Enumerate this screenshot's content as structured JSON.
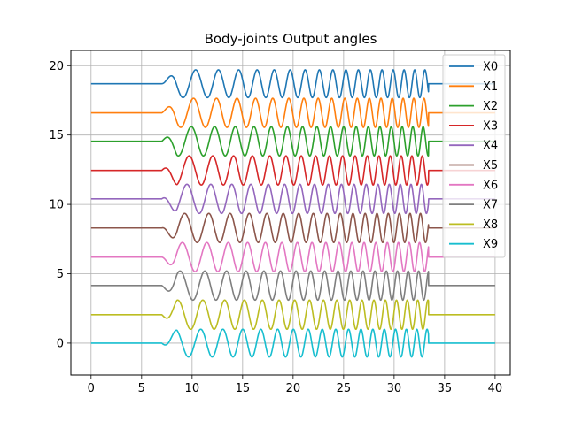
{
  "chart_data": {
    "type": "line",
    "title": "Body-joints Output angles",
    "xlabel": "",
    "ylabel": "",
    "xlim": [
      -2,
      41.5
    ],
    "ylim": [
      -2.3,
      21.1
    ],
    "xticks": [
      0,
      5,
      10,
      15,
      20,
      25,
      30,
      35,
      40
    ],
    "yticks": [
      0,
      5,
      10,
      15,
      20
    ],
    "grid": true,
    "legend_position": "top-right",
    "series": [
      {
        "name": "X0",
        "color": "#1f77b4",
        "offset": 18.7,
        "amplitude": 1.0,
        "phase": 0.0
      },
      {
        "name": "X1",
        "color": "#ff7f0e",
        "offset": 16.6,
        "amplitude": 1.05,
        "phase": 0.55
      },
      {
        "name": "X2",
        "color": "#2ca02c",
        "offset": 14.55,
        "amplitude": 1.05,
        "phase": 1.1
      },
      {
        "name": "X3",
        "color": "#d62728",
        "offset": 12.45,
        "amplitude": 1.05,
        "phase": 1.65
      },
      {
        "name": "X4",
        "color": "#9467bd",
        "offset": 10.4,
        "amplitude": 1.05,
        "phase": 2.2
      },
      {
        "name": "X5",
        "color": "#8c564b",
        "offset": 8.3,
        "amplitude": 1.05,
        "phase": 2.75
      },
      {
        "name": "X6",
        "color": "#e377c2",
        "offset": 6.2,
        "amplitude": 1.05,
        "phase": 3.3
      },
      {
        "name": "X7",
        "color": "#7f7f7f",
        "offset": 4.15,
        "amplitude": 1.05,
        "phase": 3.85
      },
      {
        "name": "X8",
        "color": "#bcbd22",
        "offset": 2.05,
        "amplitude": 1.05,
        "phase": 4.4
      },
      {
        "name": "X9",
        "color": "#17becf",
        "offset": 0.0,
        "amplitude": 1.0,
        "phase": 4.95
      }
    ],
    "oscillation_start": 7.0,
    "oscillation_end": 33.4,
    "x_end": 40
  }
}
